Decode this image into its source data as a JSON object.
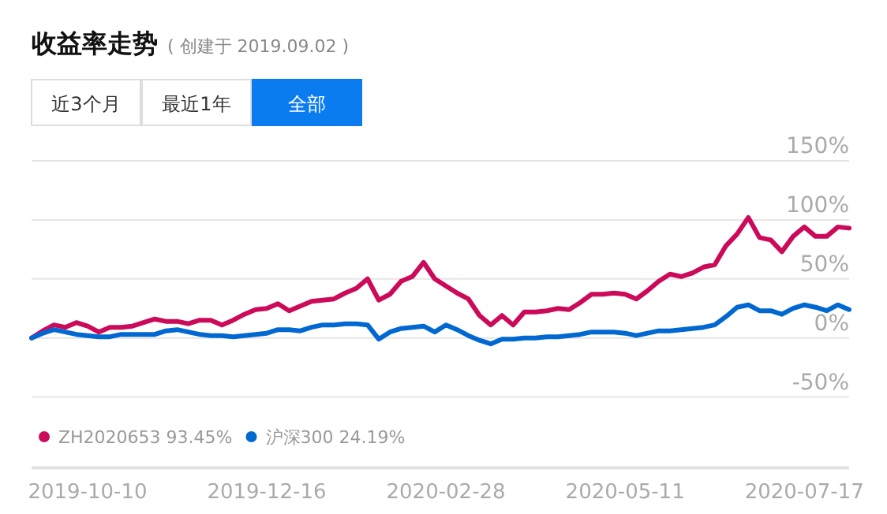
{
  "chart_data": {
    "type": "line",
    "title": "收益率走势",
    "subtitle": "( 创建于 2019.09.02 )",
    "annotations": [
      "近3个月",
      "最近1年",
      "全部"
    ],
    "categories": [
      null,
      null,
      null,
      null,
      null,
      "2019-10-10",
      null,
      null,
      null,
      null,
      null,
      null,
      null,
      null,
      null,
      null,
      null,
      null,
      null,
      null,
      null,
      "2019-12-16",
      null,
      null,
      null,
      null,
      null,
      null,
      null,
      null,
      null,
      null,
      null,
      null,
      null,
      null,
      null,
      "2020-02-28",
      null,
      null,
      null,
      null,
      null,
      null,
      null,
      null,
      null,
      null,
      null,
      null,
      null,
      null,
      null,
      "2020-05-11",
      null,
      null,
      null,
      null,
      null,
      null,
      null,
      null,
      null,
      null,
      null,
      null,
      null,
      null,
      null,
      "2020-07-17",
      null,
      null,
      null,
      null
    ],
    "ylim": [
      -110,
      150
    ],
    "yticks": [
      {
        "value": -50,
        "label": "-50%"
      },
      {
        "value": 0,
        "label": "0%"
      },
      {
        "value": 50,
        "label": "50%"
      },
      {
        "value": 100,
        "label": "100%"
      },
      {
        "value": 150,
        "label": "150%"
      }
    ],
    "grid": "y",
    "legend": "bottom",
    "marker": "none",
    "line_style": "solid",
    "series": [
      {
        "name": "ZH2020653 93.45%",
        "color": "#cc0a5a",
        "values": [
          0,
          6,
          11,
          9,
          13,
          10,
          5,
          9,
          9,
          10,
          13,
          16,
          14,
          14,
          12,
          15,
          15,
          11,
          15,
          20,
          24,
          25,
          29,
          23,
          27,
          31,
          32,
          33,
          38,
          42,
          50,
          32,
          37,
          48,
          52,
          64,
          50,
          44,
          38,
          33,
          19,
          11,
          19,
          11,
          22,
          22,
          23,
          25,
          24,
          30,
          37,
          37,
          38,
          37,
          33,
          40,
          48,
          54,
          52,
          55,
          60,
          62,
          78,
          88,
          102,
          85,
          83,
          73,
          86,
          94,
          86,
          86,
          94,
          93
        ]
      },
      {
        "name": "沪深300 24.19%",
        "color": "#0068d0",
        "values": [
          0,
          4,
          7,
          5,
          3,
          2,
          1,
          1,
          3,
          3,
          3,
          3,
          6,
          7,
          5,
          3,
          2,
          2,
          1,
          2,
          3,
          4,
          7,
          7,
          6,
          9,
          11,
          11,
          12,
          12,
          11,
          -1,
          5,
          8,
          9,
          10,
          5,
          11,
          7,
          2,
          -2,
          -5,
          -1,
          -1,
          0,
          0,
          1,
          1,
          2,
          3,
          5,
          5,
          5,
          4,
          2,
          4,
          6,
          6,
          7,
          8,
          9,
          11,
          18,
          26,
          28,
          23,
          23,
          20,
          25,
          28,
          26,
          23,
          28,
          24
        ]
      }
    ]
  }
}
